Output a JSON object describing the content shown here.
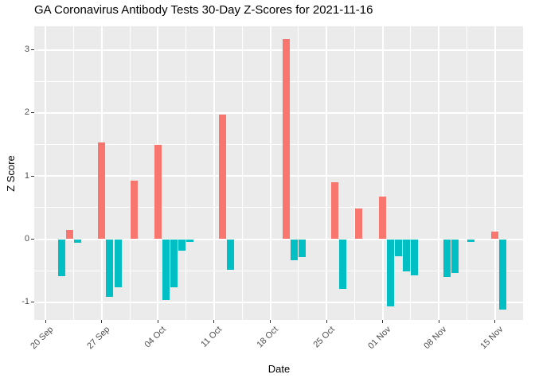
{
  "chart_data": {
    "type": "bar",
    "title": "GA Coronavirus Antibody Tests 30-Day Z-Scores for 2021-11-16",
    "xlabel": "Date",
    "ylabel": "Z Score",
    "legend": "none",
    "grid": true,
    "y_ticks": [
      3,
      2,
      1,
      0,
      -1
    ],
    "ylim": [
      -1.28,
      3.37
    ],
    "x_ticks": [
      {
        "label": "20 Sep",
        "date": "2021-09-20"
      },
      {
        "label": "27 Sep",
        "date": "2021-09-27"
      },
      {
        "label": "04 Oct",
        "date": "2021-10-04"
      },
      {
        "label": "11 Oct",
        "date": "2021-10-11"
      },
      {
        "label": "18 Oct",
        "date": "2021-10-18"
      },
      {
        "label": "25 Oct",
        "date": "2021-10-25"
      },
      {
        "label": "01 Nov",
        "date": "2021-11-01"
      },
      {
        "label": "08 Nov",
        "date": "2021-11-08"
      },
      {
        "label": "15 Nov",
        "date": "2021-11-15"
      }
    ],
    "bars": [
      {
        "date": "2021-09-22",
        "value": -0.59
      },
      {
        "date": "2021-09-23",
        "value": 0.15
      },
      {
        "date": "2021-09-24",
        "value": -0.06
      },
      {
        "date": "2021-09-27",
        "value": 1.53
      },
      {
        "date": "2021-09-28",
        "value": -0.92
      },
      {
        "date": "2021-09-29",
        "value": -0.76
      },
      {
        "date": "2021-10-01",
        "value": 0.93
      },
      {
        "date": "2021-10-04",
        "value": 1.49
      },
      {
        "date": "2021-10-05",
        "value": -0.96
      },
      {
        "date": "2021-10-06",
        "value": -0.76
      },
      {
        "date": "2021-10-07",
        "value": -0.18
      },
      {
        "date": "2021-10-08",
        "value": -0.04
      },
      {
        "date": "2021-10-12",
        "value": 1.97
      },
      {
        "date": "2021-10-13",
        "value": -0.48
      },
      {
        "date": "2021-10-20",
        "value": 3.17
      },
      {
        "date": "2021-10-21",
        "value": -0.34
      },
      {
        "date": "2021-10-22",
        "value": -0.28
      },
      {
        "date": "2021-10-26",
        "value": 0.9
      },
      {
        "date": "2021-10-27",
        "value": -0.79
      },
      {
        "date": "2021-10-29",
        "value": 0.49
      },
      {
        "date": "2021-11-01",
        "value": 0.68
      },
      {
        "date": "2021-11-02",
        "value": -1.07
      },
      {
        "date": "2021-11-03",
        "value": -0.27
      },
      {
        "date": "2021-11-04",
        "value": -0.51
      },
      {
        "date": "2021-11-05",
        "value": -0.58
      },
      {
        "date": "2021-11-09",
        "value": -0.6
      },
      {
        "date": "2021-11-10",
        "value": -0.54
      },
      {
        "date": "2021-11-12",
        "value": -0.05
      },
      {
        "date": "2021-11-15",
        "value": 0.12
      },
      {
        "date": "2021-11-16",
        "value": -1.12
      }
    ],
    "colors": {
      "positive": "#F8766D",
      "negative": "#00BFC4",
      "panel_bg": "#EBEBEB",
      "grid": "#FFFFFF",
      "tick_text": "#4D4D4D",
      "axis_tick": "#333333",
      "title_text": "#000000"
    }
  }
}
